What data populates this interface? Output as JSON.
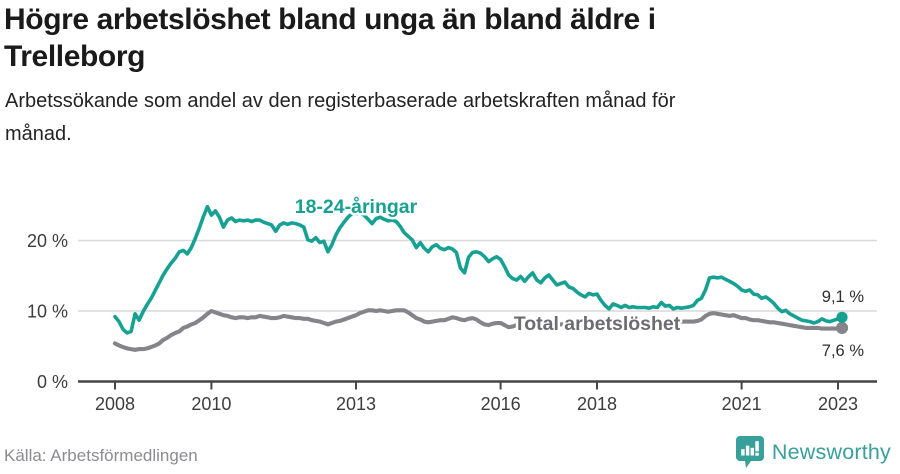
{
  "header": {
    "title_lines": [
      "Högre arbetslöshet bland unga än bland äldre i",
      "Trelleborg"
    ],
    "subtitle_lines": [
      "Arbetssökande som andel av den registerbaserade arbetskraften månad för",
      "månad."
    ]
  },
  "footer": {
    "source": "Källa: Arbetsförmedlingen",
    "logo_text": "Newsworthy"
  },
  "colors": {
    "youth": "#17a192",
    "total": "#84848a",
    "total_label": "#6c6c71",
    "grid": "#d9d9d9",
    "axis": "#454545",
    "tick_text": "#3d3d3d",
    "value_text": "#2e2e2e",
    "logo": "#37a09b"
  },
  "chart_data": {
    "type": "line",
    "title": "Högre arbetslöshet bland unga än bland äldre i Trelleborg",
    "subtitle": "Arbetssökande som andel av den registerbaserade arbetskraften månad för månad.",
    "x_axis": {
      "ticks": [
        2008,
        2010,
        2013,
        2016,
        2018,
        2021,
        2023
      ]
    },
    "y_axis": {
      "ticks": [
        0,
        10,
        20
      ],
      "tick_labels": [
        "0 %",
        "10 %",
        "20 %"
      ],
      "unit": "%",
      "range": [
        0,
        27
      ]
    },
    "grid": "horizontal-only",
    "legend": "inline-labels",
    "series": [
      {
        "name": "Total arbetslöshet",
        "color_key": "total",
        "end_label": "7,6 %",
        "end_value": 7.6,
        "start_year": 2008,
        "resolution": "monthly",
        "values": [
          5.4,
          5.1,
          4.9,
          4.7,
          4.6,
          4.5,
          4.6,
          4.6,
          4.7,
          4.9,
          5.1,
          5.4,
          5.9,
          6.2,
          6.6,
          6.9,
          7.1,
          7.6,
          7.8,
          8.1,
          8.3,
          8.7,
          9.1,
          9.6,
          10.0,
          9.8,
          9.6,
          9.4,
          9.3,
          9.1,
          9.0,
          9.1,
          9.1,
          9.0,
          9.1,
          9.1,
          9.3,
          9.2,
          9.1,
          9.0,
          9.0,
          9.1,
          9.3,
          9.2,
          9.1,
          9.0,
          9.0,
          8.9,
          8.9,
          8.7,
          8.6,
          8.5,
          8.3,
          8.1,
          8.3,
          8.5,
          8.6,
          8.8,
          9.0,
          9.2,
          9.4,
          9.7,
          9.9,
          10.1,
          10.1,
          10.0,
          10.1,
          10.0,
          9.9,
          10.0,
          10.1,
          10.1,
          10.1,
          9.8,
          9.4,
          9.0,
          8.8,
          8.5,
          8.4,
          8.5,
          8.6,
          8.7,
          8.7,
          8.9,
          9.1,
          9.0,
          8.8,
          8.7,
          8.9,
          9.0,
          8.8,
          8.4,
          8.1,
          8.0,
          8.2,
          8.3,
          8.3,
          8.0,
          7.7,
          7.8,
          8.0,
          8.1,
          8.0,
          8.1,
          8.2,
          8.1,
          8.0,
          8.1,
          8.2,
          8.1,
          8.0,
          8.1,
          8.2,
          8.1,
          8.0,
          8.1,
          8.0,
          8.1,
          8.2,
          8.1,
          8.1,
          8.0,
          7.9,
          8.0,
          8.1,
          8.0,
          8.1,
          8.0,
          8.1,
          8.2,
          8.1,
          8.2,
          8.2,
          8.3,
          8.2,
          8.3,
          8.4,
          8.3,
          8.4,
          8.5,
          8.4,
          8.5,
          8.5,
          8.5,
          8.5,
          8.6,
          8.8,
          9.3,
          9.6,
          9.7,
          9.6,
          9.5,
          9.4,
          9.3,
          9.4,
          9.2,
          9.0,
          9.0,
          8.8,
          8.7,
          8.7,
          8.6,
          8.5,
          8.4,
          8.4,
          8.3,
          8.2,
          8.1,
          8.0,
          7.9,
          7.8,
          7.7,
          7.6,
          7.6,
          7.6,
          7.6,
          7.5,
          7.5,
          7.5,
          7.5,
          7.5,
          7.6
        ]
      },
      {
        "name": "18-24-åringar",
        "color_key": "youth",
        "end_label": "9,1 %",
        "end_value": 9.1,
        "start_year": 2008,
        "resolution": "monthly",
        "values": [
          9.2,
          8.5,
          7.4,
          6.9,
          7.1,
          9.6,
          8.7,
          9.9,
          10.9,
          11.8,
          12.9,
          14.0,
          15.1,
          16.0,
          16.8,
          17.5,
          18.4,
          18.6,
          18.1,
          19.0,
          20.3,
          21.8,
          23.4,
          24.8,
          23.6,
          24.2,
          23.3,
          21.9,
          22.9,
          23.2,
          22.7,
          22.9,
          22.8,
          22.9,
          22.7,
          22.9,
          22.9,
          22.6,
          22.4,
          22.2,
          21.3,
          22.2,
          22.5,
          22.3,
          22.5,
          22.4,
          22.2,
          21.9,
          20.1,
          19.9,
          20.4,
          19.7,
          19.9,
          18.4,
          19.4,
          20.8,
          21.8,
          22.6,
          23.3,
          23.8,
          23.8,
          23.9,
          23.6,
          23.0,
          22.4,
          23.1,
          23.3,
          23.0,
          22.8,
          22.9,
          22.7,
          22.0,
          21.1,
          20.6,
          20.1,
          19.0,
          19.7,
          18.9,
          18.4,
          19.1,
          19.4,
          18.9,
          18.7,
          19.0,
          18.8,
          18.3,
          16.1,
          15.4,
          17.6,
          18.3,
          18.4,
          18.2,
          17.7,
          17.0,
          17.4,
          17.7,
          17.3,
          16.3,
          15.1,
          14.6,
          14.4,
          14.9,
          14.2,
          14.9,
          15.4,
          14.4,
          14.0,
          14.7,
          15.1,
          14.4,
          13.7,
          13.9,
          14.1,
          13.4,
          13.2,
          12.7,
          12.3,
          12.0,
          12.5,
          12.3,
          12.4,
          11.5,
          10.8,
          10.3,
          11.0,
          10.8,
          10.5,
          10.8,
          10.5,
          10.6,
          10.5,
          10.5,
          10.5,
          10.4,
          10.6,
          10.5,
          11.2,
          10.7,
          10.8,
          10.3,
          10.5,
          10.4,
          10.5,
          10.6,
          10.8,
          11.5,
          11.8,
          13.0,
          14.7,
          14.8,
          14.7,
          14.8,
          14.5,
          14.2,
          13.9,
          13.5,
          13.0,
          12.8,
          13.0,
          12.4,
          12.3,
          11.8,
          12.0,
          11.6,
          11.1,
          10.4,
          9.9,
          10.1,
          9.6,
          9.3,
          9.0,
          8.7,
          8.6,
          8.5,
          8.3,
          8.5,
          8.9,
          8.6,
          8.5,
          8.7,
          8.9,
          9.1
        ]
      }
    ]
  }
}
